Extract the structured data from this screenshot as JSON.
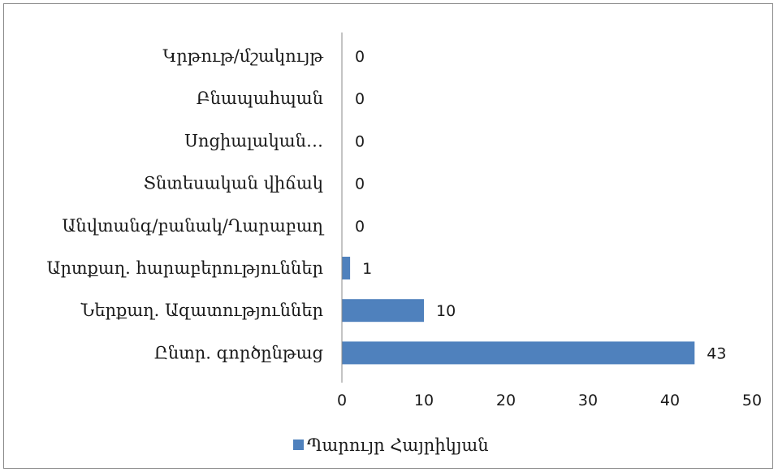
{
  "chart_data": {
    "type": "bar",
    "orientation": "horizontal",
    "categories": [
      "Կրթութ/մշակույթ",
      "Բնապահպան",
      "Սոցիալական…",
      "Տնտեսական վիճակ",
      "Անվտանգ/բանակ/Ղարաբաղ",
      "Արտքաղ. հարաբերություններ",
      "Ներքաղ. Ազատություններ",
      "Ընտր. գործընթաց"
    ],
    "series": [
      {
        "name": "Պարույր Հայրիկյան",
        "values": [
          0,
          0,
          0,
          0,
          0,
          1,
          10,
          43
        ],
        "color": "#4F81BD"
      }
    ],
    "xlim": [
      0,
      50
    ],
    "xticks": [
      "0",
      "10",
      "20",
      "30",
      "40",
      "50"
    ],
    "data_labels": true,
    "grid": false,
    "legend_position": "bottom"
  }
}
